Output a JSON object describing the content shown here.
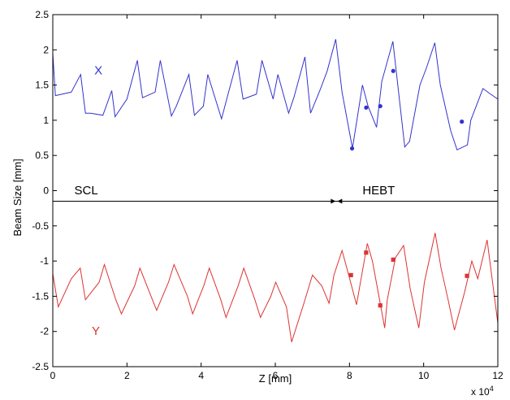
{
  "chart_data": {
    "type": "line",
    "xlabel": "Z [mm]",
    "ylabel": "Beam Size [mm]",
    "x_exponent_label": "x 10",
    "x_exponent_power": "4",
    "xlim": [
      0,
      120000
    ],
    "ylim": [
      -2.5,
      2.5
    ],
    "xticks": [
      0,
      20000,
      40000,
      60000,
      80000,
      100000,
      120000
    ],
    "xtick_labels": [
      "0",
      "2",
      "4",
      "6",
      "8",
      "10",
      "12"
    ],
    "yticks": [
      -2.5,
      -2,
      -1.5,
      -1,
      -0.5,
      0,
      0.5,
      1,
      1.5,
      2,
      2.5
    ],
    "ytick_labels": [
      "-2.5",
      "-2",
      "-1.5",
      "-1",
      "-0.5",
      "0",
      "0.5",
      "1",
      "1.5",
      "2",
      "2.5"
    ],
    "grid": false,
    "colors": {
      "x": "#3333cc",
      "y": "#dd3333",
      "axis": "#000000"
    },
    "series": [
      {
        "key": "x",
        "label": "X",
        "color": "#3333cc",
        "x": [
          0,
          700,
          5000,
          7500,
          8800,
          10200,
          13500,
          15900,
          16800,
          20000,
          22800,
          24200,
          27600,
          29000,
          32000,
          33300,
          36700,
          38200,
          40600,
          41800,
          45500,
          46900,
          49700,
          51300,
          54900,
          56400,
          59400,
          60700,
          63600,
          65000,
          68000,
          69500,
          72000,
          74000,
          76300,
          78000,
          80800,
          83500,
          85000,
          87300,
          88700,
          91700,
          94900,
          96200,
          99000,
          100800,
          103000,
          104500,
          107300,
          109000,
          111800,
          112700,
          116000,
          117800,
          120000
        ],
        "y": [
          1.95,
          1.35,
          1.4,
          1.65,
          1.1,
          1.1,
          1.07,
          1.42,
          1.05,
          1.3,
          1.85,
          1.32,
          1.4,
          1.85,
          1.06,
          1.2,
          1.65,
          1.07,
          1.2,
          1.65,
          1.02,
          1.3,
          1.85,
          1.3,
          1.37,
          1.85,
          1.3,
          1.65,
          1.1,
          1.32,
          1.9,
          1.1,
          1.42,
          1.7,
          2.15,
          1.4,
          0.6,
          1.5,
          1.2,
          0.9,
          1.55,
          2.12,
          0.62,
          0.7,
          1.5,
          1.75,
          2.1,
          1.5,
          0.85,
          0.58,
          0.65,
          1.0,
          1.45,
          1.38,
          1.3
        ]
      },
      {
        "key": "y",
        "label": "Y",
        "color": "#dd3333",
        "x": [
          0,
          1500,
          5000,
          7400,
          8800,
          12500,
          13900,
          17000,
          18500,
          22100,
          23500,
          26500,
          28000,
          31200,
          32700,
          36300,
          37700,
          40700,
          42200,
          45300,
          46700,
          50000,
          51500,
          54500,
          56000,
          58800,
          60100,
          63000,
          64400,
          67700,
          70000,
          72500,
          74500,
          75800,
          78000,
          79800,
          81900,
          84800,
          86200,
          88300,
          89500,
          90200,
          92400,
          94600,
          96400,
          98700,
          100200,
          103100,
          104700,
          106600,
          108300,
          111000,
          113000,
          114600,
          117100,
          120000
        ],
        "y": [
          -1.18,
          -1.65,
          -1.25,
          -1.1,
          -1.55,
          -1.3,
          -1.05,
          -1.55,
          -1.75,
          -1.35,
          -1.1,
          -1.5,
          -1.7,
          -1.3,
          -1.05,
          -1.5,
          -1.75,
          -1.35,
          -1.1,
          -1.55,
          -1.8,
          -1.35,
          -1.1,
          -1.55,
          -1.8,
          -1.5,
          -1.3,
          -1.65,
          -2.15,
          -1.6,
          -1.2,
          -1.35,
          -1.6,
          -1.2,
          -0.85,
          -1.2,
          -1.62,
          -0.75,
          -1.0,
          -1.6,
          -1.95,
          -1.55,
          -0.95,
          -0.78,
          -1.4,
          -1.95,
          -1.3,
          -0.6,
          -1.1,
          -1.55,
          -1.98,
          -1.45,
          -1.0,
          -1.25,
          -0.7,
          -1.88
        ]
      }
    ],
    "markers": [
      {
        "series": "x",
        "shape": "circle",
        "color": "#3333cc",
        "x": [
          80700,
          84500,
          88300,
          91800,
          110300
        ],
        "y": [
          0.6,
          1.18,
          1.2,
          1.7,
          0.98
        ]
      },
      {
        "series": "y",
        "shape": "square",
        "color": "#dd3333",
        "x": [
          80400,
          84500,
          88300,
          91800,
          111700
        ],
        "y": [
          -1.2,
          -0.88,
          -1.63,
          -0.98,
          -1.21
        ]
      }
    ],
    "divider": {
      "y": -0.15,
      "arrow_meet_x": 76500
    },
    "annotations": [
      {
        "id": "label-x",
        "text": "X",
        "x": 11200,
        "y": 1.65,
        "color": "#3333cc"
      },
      {
        "id": "label-y",
        "text": "Y",
        "x": 10500,
        "y": -2.05,
        "color": "#dd3333"
      },
      {
        "id": "label-scl",
        "text": "SCL",
        "x": 5800,
        "y": -0.05,
        "color": "#000000"
      },
      {
        "id": "label-hebt",
        "text": "HEBT",
        "x": 83500,
        "y": -0.05,
        "color": "#000000"
      }
    ]
  }
}
